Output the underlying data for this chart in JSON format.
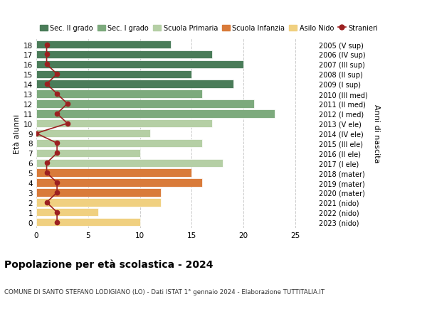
{
  "ages": [
    18,
    17,
    16,
    15,
    14,
    13,
    12,
    11,
    10,
    9,
    8,
    7,
    6,
    5,
    4,
    3,
    2,
    1,
    0
  ],
  "right_labels": [
    "2005 (V sup)",
    "2006 (IV sup)",
    "2007 (III sup)",
    "2008 (II sup)",
    "2009 (I sup)",
    "2010 (III med)",
    "2011 (II med)",
    "2012 (I med)",
    "2013 (V ele)",
    "2014 (IV ele)",
    "2015 (III ele)",
    "2016 (II ele)",
    "2017 (I ele)",
    "2018 (mater)",
    "2019 (mater)",
    "2020 (mater)",
    "2021 (nido)",
    "2022 (nido)",
    "2023 (nido)"
  ],
  "bar_values": [
    13,
    17,
    20,
    15,
    19,
    16,
    21,
    23,
    17,
    11,
    16,
    10,
    18,
    15,
    16,
    12,
    12,
    6,
    10
  ],
  "bar_colors": [
    "#4a7c59",
    "#4a7c59",
    "#4a7c59",
    "#4a7c59",
    "#4a7c59",
    "#7daa7d",
    "#7daa7d",
    "#7daa7d",
    "#b5cfa5",
    "#b5cfa5",
    "#b5cfa5",
    "#b5cfa5",
    "#b5cfa5",
    "#d97b3a",
    "#d97b3a",
    "#d97b3a",
    "#f0d080",
    "#f0d080",
    "#f0d080"
  ],
  "stranieri": [
    1,
    1,
    1,
    2,
    1,
    2,
    3,
    2,
    3,
    0,
    2,
    2,
    1,
    1,
    2,
    2,
    1,
    2,
    2
  ],
  "stranieri_color": "#9b2020",
  "title": "Popolazione per età scolastica - 2024",
  "subtitle": "COMUNE DI SANTO STEFANO LODIGIANO (LO) - Dati ISTAT 1° gennaio 2024 - Elaborazione TUTTITALIA.IT",
  "ylabel": "Età alunni",
  "right_ylabel": "Anni di nascita",
  "xlim": [
    0,
    27
  ],
  "xticks": [
    0,
    5,
    10,
    15,
    20,
    25
  ],
  "legend_items": [
    {
      "label": "Sec. II grado",
      "color": "#4a7c59"
    },
    {
      "label": "Sec. I grado",
      "color": "#7daa7d"
    },
    {
      "label": "Scuola Primaria",
      "color": "#b5cfa5"
    },
    {
      "label": "Scuola Infanzia",
      "color": "#d97b3a"
    },
    {
      "label": "Asilo Nido",
      "color": "#f0d080"
    },
    {
      "label": "Stranieri",
      "color": "#9b2020"
    }
  ],
  "bg_color": "#ffffff",
  "grid_color": "#cccccc",
  "bar_height": 0.82
}
